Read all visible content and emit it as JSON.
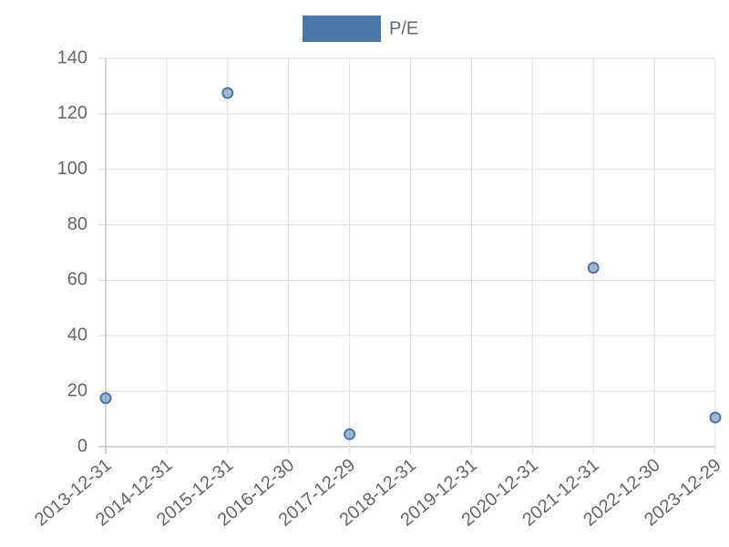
{
  "chart_data": {
    "type": "line",
    "categories": [
      "2013-12-31",
      "2014-12-31",
      "2015-12-31",
      "2016-12-30",
      "2017-12-29",
      "2018-12-31",
      "2019-12-31",
      "2020-12-31",
      "2021-12-31",
      "2022-12-30",
      "2023-12-29"
    ],
    "series": [
      {
        "name": "P/E",
        "color": "#4a76a8",
        "values": [
          17.5,
          null,
          127.5,
          null,
          4.5,
          null,
          null,
          null,
          64.5,
          null,
          10.5
        ]
      }
    ],
    "ylim": [
      0,
      140
    ],
    "yticks": [
      0,
      20,
      40,
      60,
      80,
      100,
      120,
      140
    ],
    "grid": true,
    "legend": "top"
  }
}
